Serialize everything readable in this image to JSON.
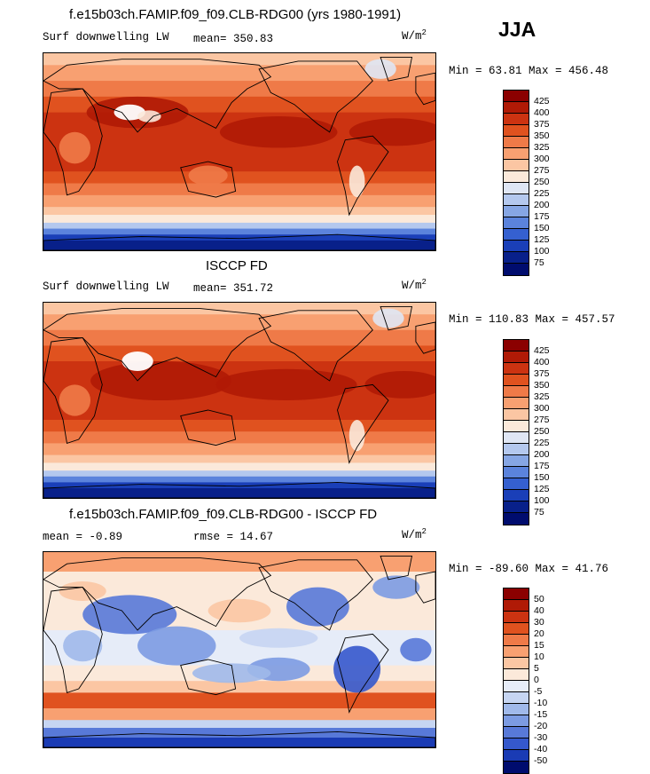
{
  "header": {
    "title": "f.e15b03ch.FAMIP.f09_f09.CLB-RDG00 (yrs 1980-1991)",
    "season": "JJA"
  },
  "panels": [
    {
      "title": "",
      "label_left": "Surf downwelling LW",
      "stat_label": "mean=",
      "stat_value": "350.83",
      "units_base": "W/m",
      "units_sup": "2",
      "range_text": "Min =  63.81 Max = 456.48",
      "colorbar_labels": [
        "425",
        "400",
        "375",
        "350",
        "325",
        "300",
        "275",
        "250",
        "225",
        "200",
        "175",
        "150",
        "125",
        "100",
        "75"
      ]
    },
    {
      "title": "ISCCP FD",
      "label_left": "Surf downwelling LW",
      "stat_label": "mean=",
      "stat_value": "351.72",
      "units_base": "W/m",
      "units_sup": "2",
      "range_text": "Min = 110.83 Max = 457.57",
      "colorbar_labels": [
        "425",
        "400",
        "375",
        "350",
        "325",
        "300",
        "275",
        "250",
        "225",
        "200",
        "175",
        "150",
        "125",
        "100",
        "75"
      ]
    },
    {
      "title": "f.e15b03ch.FAMIP.f09_f09.CLB-RDG00 - ISCCP FD",
      "label_left": "mean =",
      "label_left_value": "-0.89",
      "stat_label": "rmse =",
      "stat_value": "14.67",
      "units_base": "W/m",
      "units_sup": "2",
      "range_text": "Min = -89.60 Max =  41.76",
      "colorbar_labels": [
        "50",
        "40",
        "30",
        "20",
        "15",
        "10",
        "5",
        "0",
        "-5",
        "-10",
        "-15",
        "-20",
        "-30",
        "-40",
        "-50"
      ]
    }
  ],
  "colors": {
    "abs_scale": [
      "#8b0000",
      "#b01a06",
      "#cc3311",
      "#e0521f",
      "#ef7a48",
      "#f8a071",
      "#fbc6a3",
      "#fbe9da",
      "#dfe6f4",
      "#b4c8ee",
      "#86a6e4",
      "#5b83dc",
      "#3560d0",
      "#1a3fb8",
      "#08208a",
      "#000c6e"
    ],
    "diff_scale": [
      "#8b0000",
      "#b01a06",
      "#cc3311",
      "#e0521f",
      "#ef7a48",
      "#f8a071",
      "#fbc6a3",
      "#fbe9da",
      "#e6ecf8",
      "#c6d5f2",
      "#a0b9ea",
      "#7c9be2",
      "#5879d8",
      "#3558cc",
      "#1a3bb4",
      "#000c6e"
    ]
  }
}
